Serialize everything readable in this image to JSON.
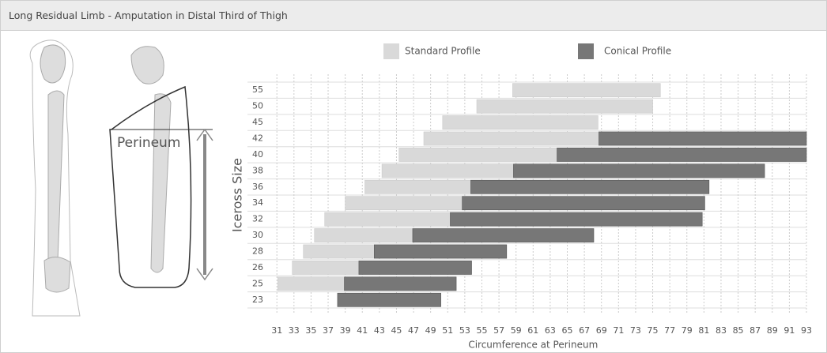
{
  "header": {
    "title": "Long Residual Limb - Amputation in Distal Third of Thigh"
  },
  "illustration": {
    "label": "Perineum"
  },
  "chart_data": {
    "type": "range-bar",
    "x_label": "Circumference at Perineum",
    "y_label": "Iceross Size",
    "categories": [
      "55",
      "50",
      "45",
      "42",
      "40",
      "38",
      "36",
      "34",
      "32",
      "30",
      "28",
      "26",
      "25",
      "23"
    ],
    "series": [
      {
        "name": "Standard Profile",
        "color": "#d9d9d9",
        "values": [
          [
            58.6,
            75.9
          ],
          [
            54.4,
            75
          ],
          [
            50.4,
            68.6
          ],
          [
            48.2,
            68.7
          ],
          [
            45.3,
            63.8
          ],
          [
            43.3,
            58.7
          ],
          [
            41.3,
            53.7
          ],
          [
            39,
            52.7
          ],
          [
            36.6,
            51.3
          ],
          [
            35.4,
            46.9
          ],
          [
            34.1,
            42.4
          ],
          [
            32.8,
            40.6
          ],
          [
            31.1,
            38.9
          ],
          null
        ]
      },
      {
        "name": "Conical Profile",
        "color": "#777777",
        "values": [
          null,
          null,
          null,
          [
            68.7,
            93
          ],
          [
            63.8,
            93
          ],
          [
            58.7,
            88.1
          ],
          [
            53.7,
            81.6
          ],
          [
            52.7,
            81.1
          ],
          [
            51.3,
            80.8
          ],
          [
            46.9,
            68.1
          ],
          [
            42.4,
            57.9
          ],
          [
            40.6,
            53.8
          ],
          [
            38.9,
            52
          ],
          [
            38.1,
            50.2
          ]
        ]
      }
    ],
    "xlim": [
      29.5,
      93
    ],
    "xticks": [
      31,
      33,
      35,
      37,
      39,
      41,
      43,
      45,
      47,
      49,
      51,
      53,
      55,
      57,
      59,
      61,
      63,
      65,
      67,
      69,
      71,
      73,
      75,
      77,
      79,
      81,
      83,
      85,
      87,
      89,
      91,
      93
    ],
    "grid": true
  }
}
